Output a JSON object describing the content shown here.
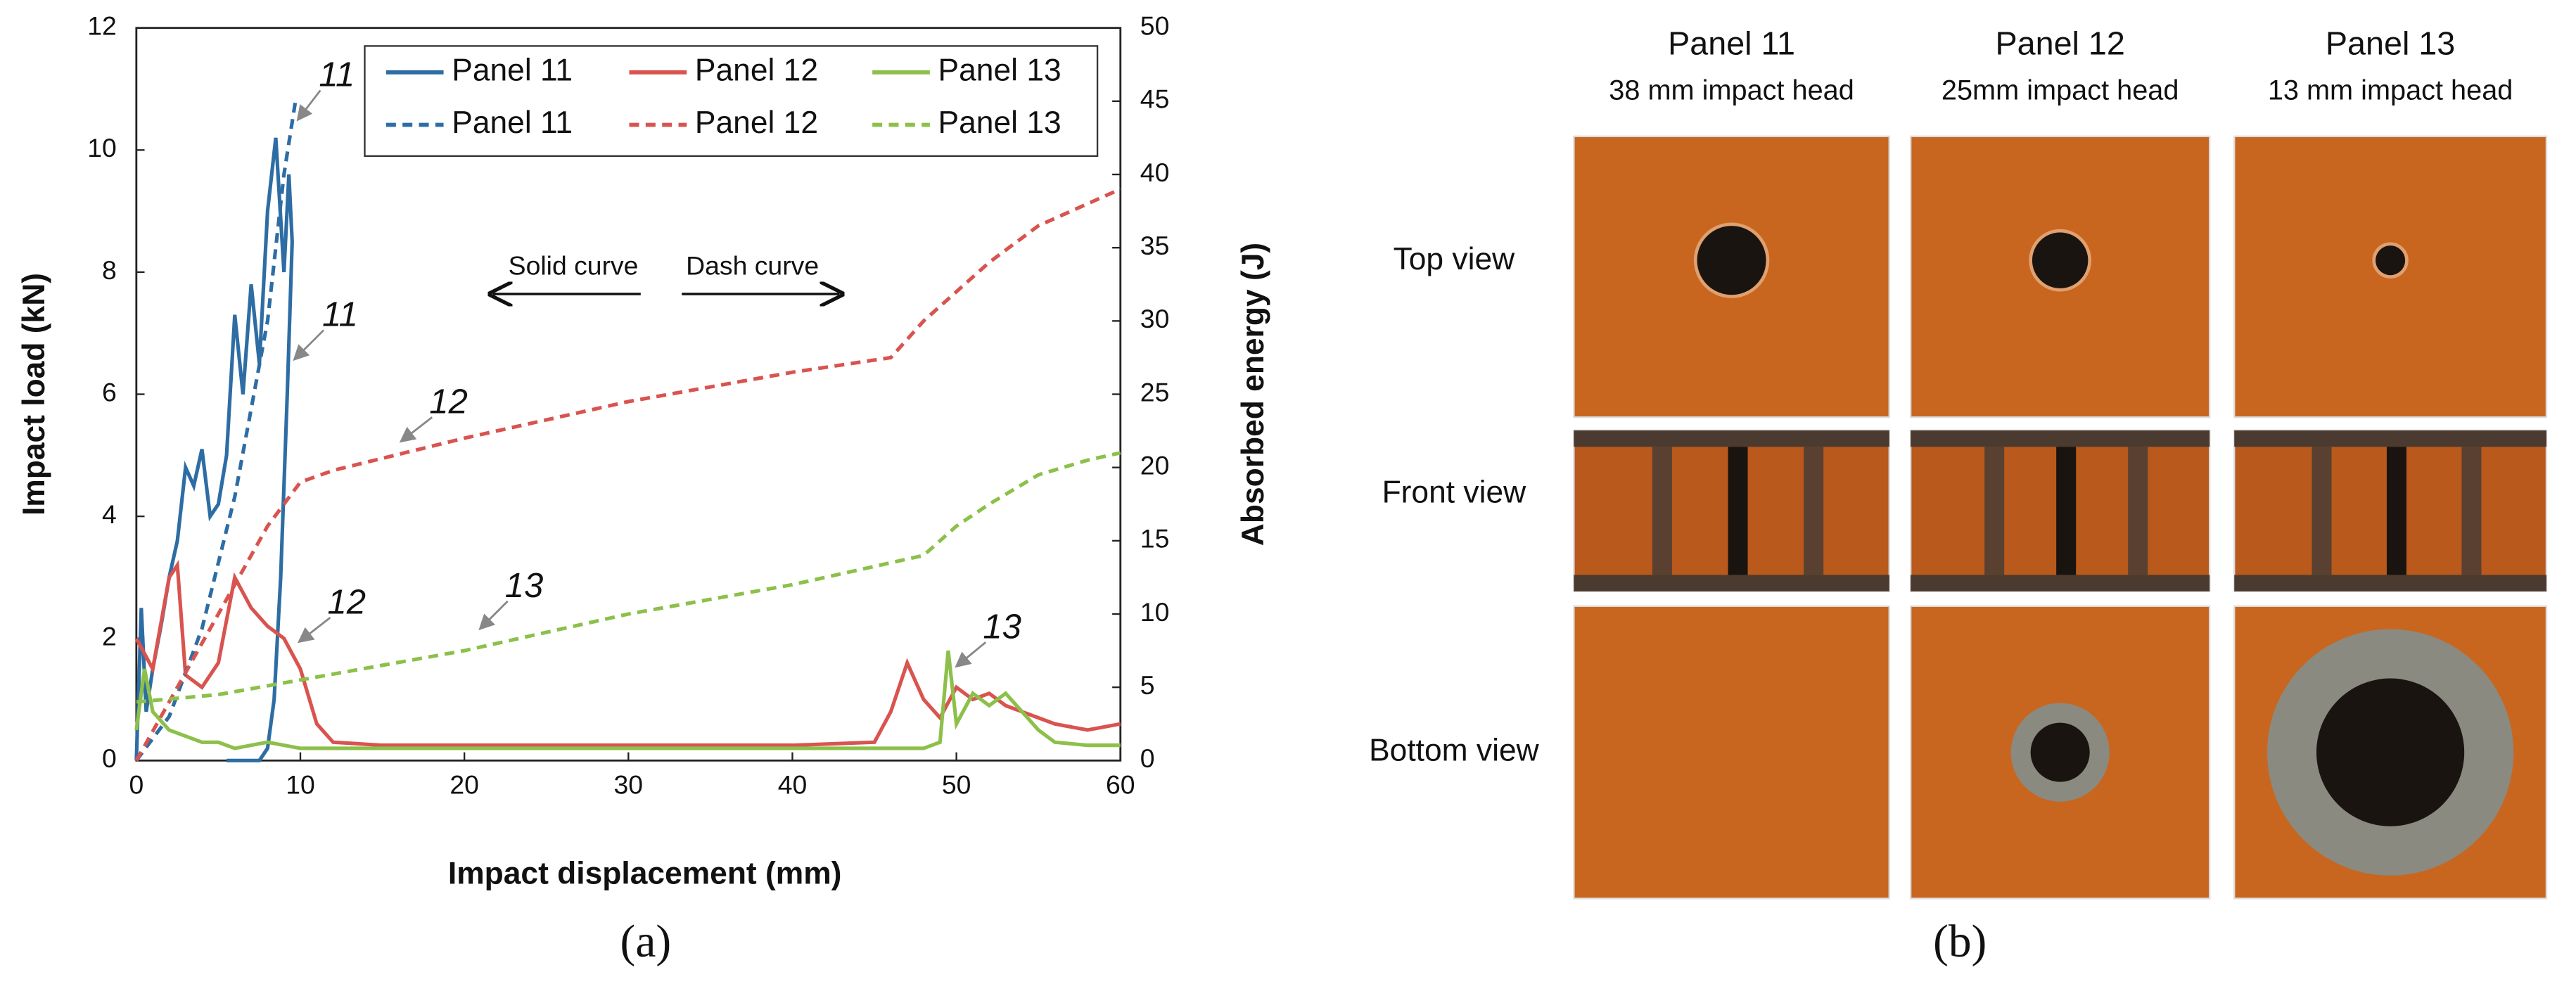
{
  "chart_data": {
    "type": "line",
    "xlabel": "Impact displacement (mm)",
    "ylabel": "Impact load (kN)",
    "y2label": "Absorbed energy (J)",
    "xlim": [
      0,
      60
    ],
    "xticks": [
      0,
      10,
      20,
      30,
      40,
      50,
      60
    ],
    "ylim": [
      0,
      12
    ],
    "yticks": [
      0,
      2,
      4,
      6,
      8,
      10,
      12
    ],
    "y2lim": [
      0,
      50
    ],
    "y2ticks": [
      0,
      5,
      10,
      15,
      20,
      25,
      30,
      35,
      40,
      45,
      50
    ],
    "legend": "upper right",
    "series": [
      {
        "name": "Panel 11",
        "color": "#2e6da4",
        "style": "solid",
        "x": [
          0,
          0.3,
          0.6,
          1,
          1.5,
          2,
          2.5,
          3,
          3.5,
          4,
          4.5,
          5,
          5.5,
          6,
          6.5,
          7,
          7.5,
          8,
          8.5,
          9,
          9.3,
          9.5,
          9.2,
          8.8,
          8.4,
          8,
          7.5,
          6.5,
          5.5
        ],
        "values": [
          0,
          2.5,
          0.8,
          1.5,
          2.2,
          3,
          3.6,
          4.8,
          4.5,
          5.1,
          4,
          4.2,
          5,
          7.3,
          6,
          7.8,
          6.5,
          9,
          10.2,
          8,
          9.6,
          8.5,
          6,
          3,
          1,
          0.2,
          0,
          0,
          0
        ]
      },
      {
        "name": "Panel 12",
        "color": "#d9534f",
        "style": "solid",
        "x": [
          0,
          1,
          2,
          2.5,
          3,
          4,
          5,
          6,
          7,
          8,
          9,
          10,
          11,
          12,
          15,
          20,
          30,
          40,
          45,
          46,
          47,
          48,
          49,
          50,
          51,
          52,
          53,
          54,
          55,
          56,
          58,
          60
        ],
        "values": [
          2,
          1.5,
          3,
          3.2,
          1.4,
          1.2,
          1.6,
          3,
          2.5,
          2.2,
          2,
          1.5,
          0.6,
          0.3,
          0.25,
          0.25,
          0.25,
          0.25,
          0.3,
          0.8,
          1.6,
          1,
          0.7,
          1.2,
          1,
          1.1,
          0.9,
          0.8,
          0.7,
          0.6,
          0.5,
          0.6
        ]
      },
      {
        "name": "Panel 13",
        "color": "#8cc04a",
        "style": "solid",
        "x": [
          0,
          0.5,
          1,
          2,
          3,
          4,
          5,
          6,
          8,
          10,
          20,
          30,
          40,
          47,
          48,
          49,
          49.5,
          50,
          51,
          52,
          53,
          54,
          55,
          56,
          58,
          60
        ],
        "values": [
          0.5,
          1.5,
          0.8,
          0.5,
          0.4,
          0.3,
          0.3,
          0.2,
          0.3,
          0.2,
          0.2,
          0.2,
          0.2,
          0.2,
          0.2,
          0.3,
          1.8,
          0.6,
          1.1,
          0.9,
          1.1,
          0.8,
          0.5,
          0.3,
          0.25,
          0.25
        ]
      },
      {
        "name": "Panel 11",
        "color": "#2e6da4",
        "style": "dashed",
        "axis": "y2",
        "x": [
          0,
          2,
          4,
          6,
          8,
          9,
          9.7
        ],
        "values": [
          0,
          3,
          9,
          18,
          30,
          40,
          45
        ]
      },
      {
        "name": "Panel 12",
        "color": "#d9534f",
        "style": "dashed",
        "axis": "y2",
        "x": [
          0,
          2,
          4,
          6,
          8,
          10,
          12,
          20,
          30,
          40,
          46,
          48,
          50,
          52,
          55,
          58,
          60
        ],
        "values": [
          0,
          4,
          8,
          12,
          16,
          19,
          19.8,
          22,
          24.5,
          26.5,
          27.5,
          30,
          32,
          34,
          36.5,
          38,
          39
        ]
      },
      {
        "name": "Panel 13",
        "color": "#8cc04a",
        "style": "dashed",
        "axis": "y2",
        "x": [
          0,
          5,
          10,
          20,
          30,
          40,
          48,
          50,
          52,
          55,
          58,
          60
        ],
        "values": [
          4,
          4.5,
          5.5,
          7.5,
          10,
          12,
          14,
          16,
          17.5,
          19.5,
          20.5,
          21
        ]
      }
    ],
    "annotations": [
      "11",
      "11",
      "12",
      "12",
      "13",
      "13",
      "Solid curve",
      "Dash curve"
    ]
  },
  "photo_panel": {
    "columns": [
      {
        "title": "Panel 11",
        "subtitle": "38 mm impact  head"
      },
      {
        "title": "Panel 12",
        "subtitle": "25mm impact  head"
      },
      {
        "title": "Panel 13",
        "subtitle": "13 mm impact  head"
      }
    ],
    "rows": [
      "Top view",
      "Front view",
      "Bottom view"
    ]
  },
  "panel_labels": [
    "(a)",
    "(b)"
  ]
}
